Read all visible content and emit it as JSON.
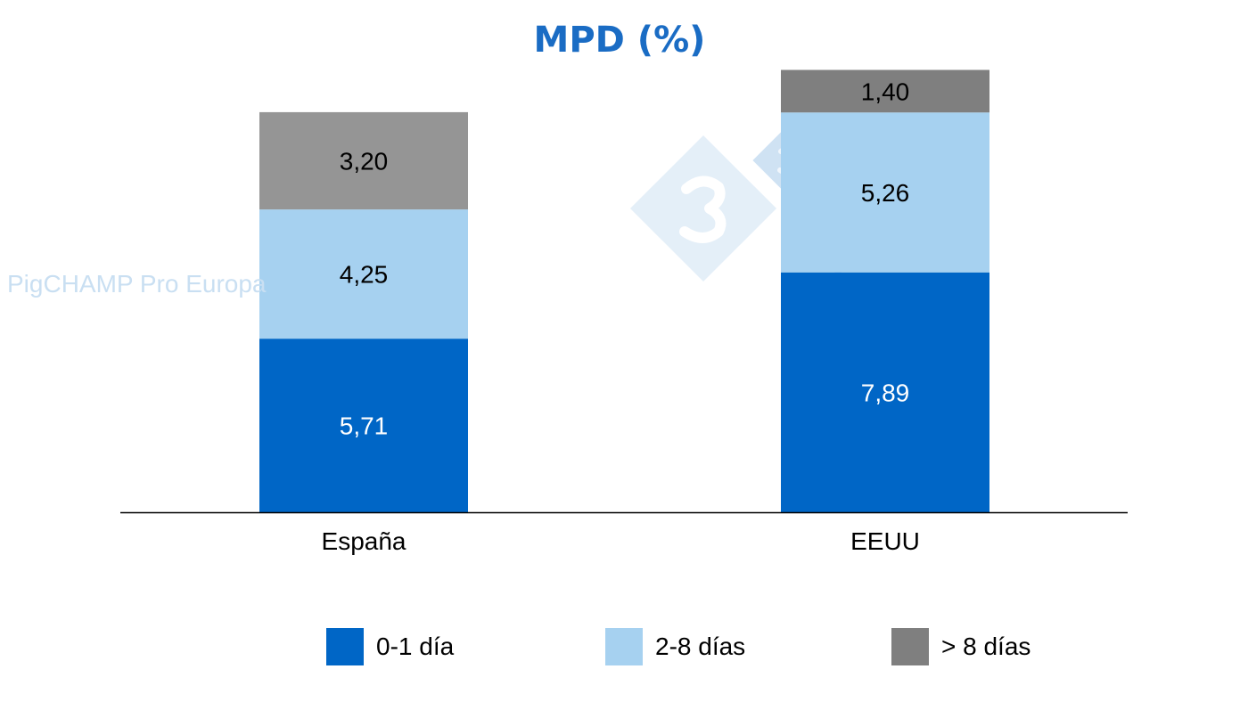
{
  "chart_data": {
    "type": "bar",
    "stacked": true,
    "title": "MPD (%)",
    "categories": [
      "España",
      "EEUU"
    ],
    "series": [
      {
        "name": "0-1 día",
        "values": [
          5.71,
          7.89
        ],
        "labels": [
          "5,71",
          "7,89"
        ],
        "color": "#0066c6",
        "label_color": "#ffffff"
      },
      {
        "name": "2-8 días",
        "values": [
          4.25,
          5.26
        ],
        "labels": [
          "4,25",
          "5,26"
        ],
        "color": "#a6d1f0",
        "label_color": "#000000"
      },
      {
        "name": "> 8 días",
        "values": [
          3.2,
          1.4
        ],
        "labels": [
          "3,20",
          "1,40"
        ],
        "color": "#7f7f7f",
        "point_colors": [
          "#959595",
          "#7f7f7f"
        ],
        "label_color": "#000000"
      }
    ],
    "ylim": [
      0,
      16
    ],
    "y_axis_visible": false,
    "grid": false,
    "legend": "bottom",
    "xlabel": "",
    "ylabel": ""
  },
  "watermark": {
    "text": "PigCHAMP Pro Europa",
    "logo": "3tres3"
  }
}
